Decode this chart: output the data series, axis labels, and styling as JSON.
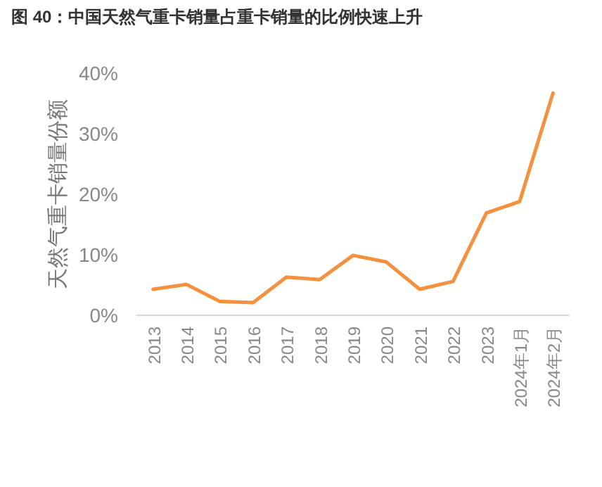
{
  "chart_data": {
    "type": "line",
    "title": "图 40：中国天然气重卡销量占重卡销量的比例快速上升",
    "ylabel": "天然气重卡销量份额",
    "categories": [
      "2013",
      "2014",
      "2015",
      "2016",
      "2017",
      "2018",
      "2019",
      "2020",
      "2021",
      "2022",
      "2023",
      "2024年1月",
      "2024年2月"
    ],
    "series": [
      {
        "color": "#f5913e",
        "values": [
          4.3,
          5.1,
          2.3,
          2.1,
          6.3,
          5.9,
          9.9,
          8.8,
          4.3,
          5.6,
          16.9,
          18.8,
          36.7
        ]
      }
    ],
    "ylim": [
      0,
      40
    ],
    "yticks": [
      {
        "value": 0,
        "label": "0%"
      },
      {
        "value": 10,
        "label": "10%"
      },
      {
        "value": 20,
        "label": "20%"
      },
      {
        "value": 30,
        "label": "30%"
      },
      {
        "value": 40,
        "label": "40%"
      }
    ],
    "grid": false,
    "marker": "none",
    "line_style": "solid"
  }
}
